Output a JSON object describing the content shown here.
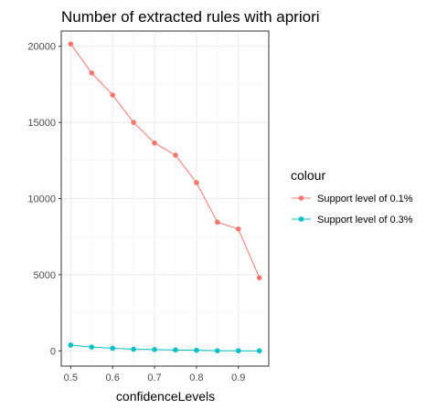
{
  "chart_data": {
    "type": "line",
    "title": "Number of extracted rules with apriori",
    "xlabel": "confidenceLevels",
    "ylabel": "",
    "x": [
      0.5,
      0.55,
      0.6,
      0.65,
      0.7,
      0.75,
      0.8,
      0.85,
      0.9,
      0.95
    ],
    "x_ticks": [
      0.5,
      0.6,
      0.7,
      0.8,
      0.9
    ],
    "x_tick_labels": [
      "0.5",
      "0.6",
      "0.7",
      "0.8",
      "0.9"
    ],
    "xlim": [
      0.4775,
      0.9725
    ],
    "y_ticks": [
      0,
      5000,
      10000,
      15000,
      20000
    ],
    "y_tick_labels": [
      "0",
      "5000",
      "10000",
      "15000",
      "20000"
    ],
    "ylim": [
      -1000,
      21000
    ],
    "grid": true,
    "legend_title": "colour",
    "legend_position": "right",
    "series": [
      {
        "name": "Support level of 0.1%",
        "color": "#F8766D",
        "values": [
          20150,
          18250,
          16800,
          15000,
          13650,
          12850,
          11050,
          8450,
          8000,
          4800
        ]
      },
      {
        "name": "Support level of 0.3%",
        "color": "#00BFC4",
        "values": [
          380,
          250,
          170,
          110,
          90,
          60,
          40,
          10,
          5,
          0
        ]
      }
    ]
  }
}
